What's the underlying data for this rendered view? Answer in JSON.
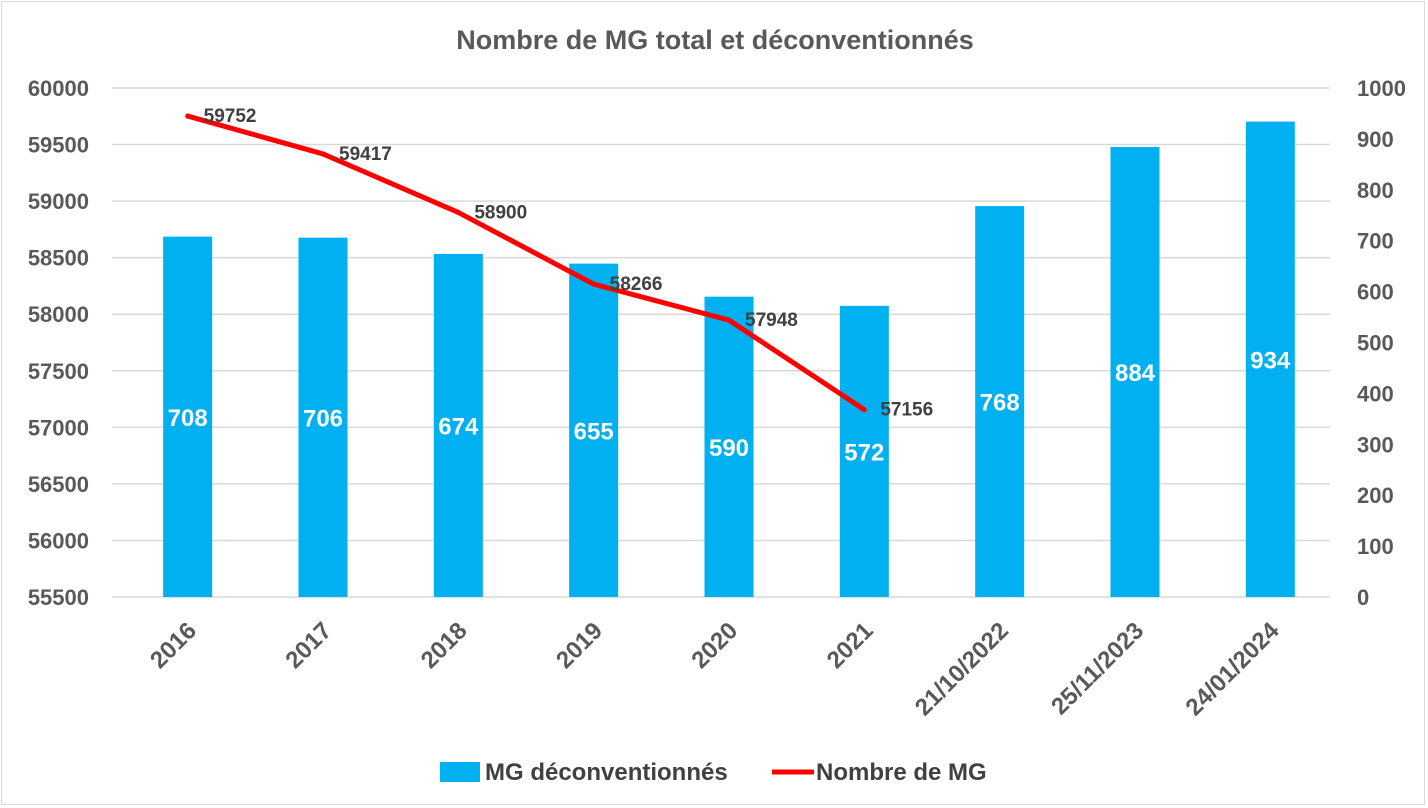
{
  "chart_data": {
    "type": "bar",
    "title": "Nombre de MG total et déconventionnés",
    "categories": [
      "2016",
      "2017",
      "2018",
      "2019",
      "2020",
      "2021",
      "21/10/2022",
      "25/11/2023",
      "24/01/2024"
    ],
    "series": [
      {
        "name": "MG déconventionnés",
        "type": "bar",
        "axis": "right",
        "color": "#00b0f0",
        "values": [
          708,
          706,
          674,
          655,
          590,
          572,
          768,
          884,
          934
        ]
      },
      {
        "name": "Nombre de MG",
        "type": "line",
        "axis": "left",
        "color": "#ff0000",
        "values": [
          59752,
          59417,
          58900,
          58266,
          57948,
          57156,
          null,
          null,
          null
        ]
      }
    ],
    "y_left": {
      "min": 55500,
      "max": 60000,
      "step": 500,
      "ticks": [
        "60000",
        "59500",
        "59000",
        "58500",
        "58000",
        "57500",
        "57000",
        "56500",
        "56000",
        "55500"
      ]
    },
    "y_right": {
      "min": 0,
      "max": 1000,
      "step": 100,
      "ticks": [
        "1000",
        "900",
        "800",
        "700",
        "600",
        "500",
        "400",
        "300",
        "200",
        "100",
        "0"
      ]
    },
    "grid": true,
    "legend_position": "bottom",
    "legend": [
      "MG déconventionnés",
      "Nombre de MG"
    ]
  }
}
